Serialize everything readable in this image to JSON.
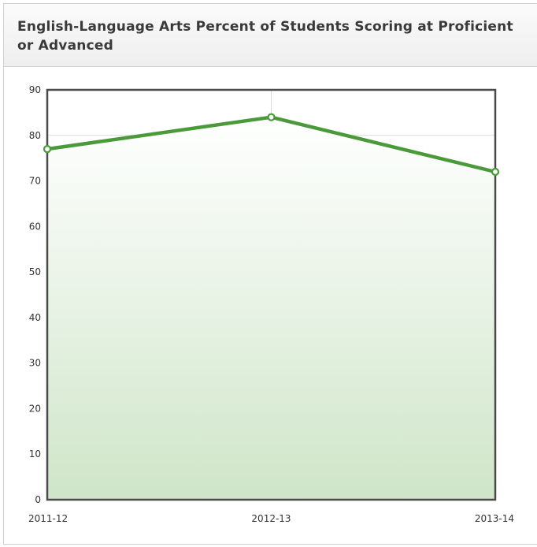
{
  "panel": {
    "title": "English-Language Arts Percent of Students Scoring at Proficient or Advanced"
  },
  "chart_data": {
    "type": "line",
    "title": "",
    "xlabel": "",
    "ylabel": "",
    "categories": [
      "2011-12",
      "2012-13",
      "2013-14"
    ],
    "series": [
      {
        "values": [
          77,
          84,
          72
        ]
      }
    ],
    "ylim": [
      0,
      90
    ],
    "yticks": [
      0,
      10,
      20,
      30,
      40,
      50,
      60,
      70,
      80,
      90
    ],
    "grid": true,
    "area_fill": true,
    "colors": {
      "line": "#4a9a3a",
      "fill_top": "#ffffff",
      "fill_bottom": "#cfe5c9",
      "grid": "#d9d9d9",
      "frame": "#4a4a4a"
    }
  }
}
